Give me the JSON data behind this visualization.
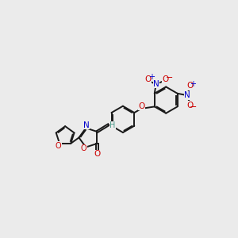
{
  "bg_color": "#ebebeb",
  "bond_color": "#1a1a1a",
  "oxygen_color": "#cc0000",
  "nitrogen_color": "#0000cc",
  "h_color": "#4a9a8a",
  "line_width": 1.4,
  "figsize": [
    3.0,
    3.0
  ],
  "dpi": 100,
  "xlim": [
    0,
    10
  ],
  "ylim": [
    0,
    10
  ]
}
